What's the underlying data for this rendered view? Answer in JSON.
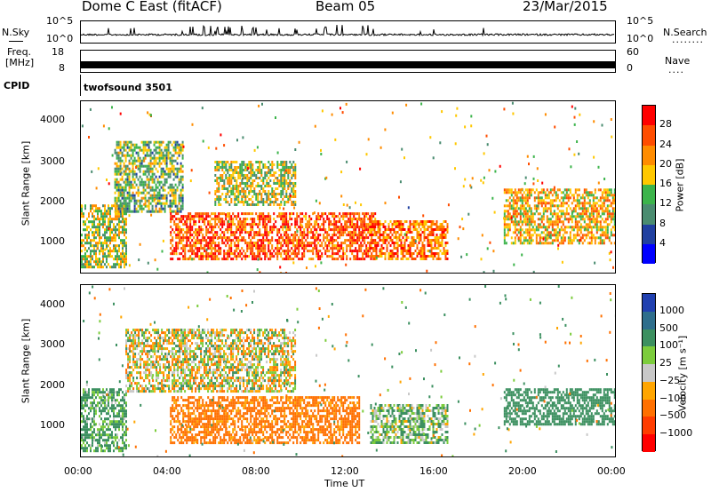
{
  "header": {
    "station": "Dome C East (fitACF)",
    "beam": "Beam 05",
    "date": "23/Mar/2015"
  },
  "sky_panel": {
    "left_label": "N.Sky",
    "left_ticks": [
      "10^5",
      "10^0"
    ],
    "right_ticks": [
      "10^5",
      "10^0"
    ],
    "right_label": "N.Search",
    "right_label_dots": "........"
  },
  "freq_panel": {
    "left_label_1": "Freq.",
    "left_label_2": "[MHz]",
    "left_ticks": [
      "18",
      "8"
    ],
    "right_ticks": [
      "60",
      "0"
    ],
    "right_label": "Nave",
    "right_label_dots": "...."
  },
  "cpid_panel": {
    "label": "CPID",
    "program": "twofsound 3501"
  },
  "power_panel": {
    "ylabel": "Slant Range [km]",
    "yticks": [
      "4000",
      "3000",
      "2000",
      "1000"
    ],
    "colorbar_label": "Power [dB]",
    "colorbar_ticks": [
      "28",
      "24",
      "20",
      "16",
      "12",
      "8",
      "4"
    ],
    "colors": [
      "#ff0000",
      "#ff4d00",
      "#ff8c00",
      "#ffc800",
      "#3cb44b",
      "#4a8c70",
      "#2040a0",
      "#0000ff"
    ]
  },
  "velocity_panel": {
    "ylabel": "Slant Range [km]",
    "yticks": [
      "4000",
      "3000",
      "2000",
      "1000"
    ],
    "colorbar_label": "Velocity [m s⁻¹]",
    "colorbar_ticks": [
      "1000",
      "500",
      "100",
      "25",
      "−25",
      "−100",
      "−500",
      "−1000"
    ],
    "colors": [
      "#2040b0",
      "#2e6e8c",
      "#3c9060",
      "#7ccc3c",
      "#c8c8c8",
      "#ffa500",
      "#ff7000",
      "#ff3c00",
      "#ff0000"
    ]
  },
  "xaxis": {
    "ticks": [
      "00:00",
      "04:00",
      "08:00",
      "12:00",
      "16:00",
      "20:00",
      "00:00"
    ],
    "label": "Time UT"
  },
  "chart_data": [
    {
      "type": "heatmap",
      "title": "Power",
      "ylabel": "Slant Range [km]",
      "xlabel": "Time UT",
      "ylim": [
        180,
        4500
      ],
      "xlim": [
        "00:00",
        "24:00"
      ],
      "colorbar": {
        "label": "Power [dB]",
        "ticks": [
          4,
          8,
          12,
          16,
          20,
          24,
          28
        ]
      },
      "regions": [
        {
          "t_start": 0.0,
          "t_end": 2.0,
          "r_min": 300,
          "r_max": 1900,
          "dB": 16
        },
        {
          "t_start": 1.5,
          "t_end": 4.6,
          "r_min": 1700,
          "r_max": 3500,
          "dB": 14
        },
        {
          "t_start": 4.0,
          "t_end": 13.2,
          "r_min": 500,
          "r_max": 1700,
          "dB": 26
        },
        {
          "t_start": 6.0,
          "t_end": 9.6,
          "r_min": 1900,
          "r_max": 3000,
          "dB": 16
        },
        {
          "t_start": 13.0,
          "t_end": 16.5,
          "r_min": 500,
          "r_max": 1500,
          "dB": 24
        },
        {
          "t_start": 19.0,
          "t_end": 24.0,
          "r_min": 900,
          "r_max": 2300,
          "dB": 20
        }
      ]
    },
    {
      "type": "heatmap",
      "title": "Velocity",
      "ylabel": "Slant Range [km]",
      "xlabel": "Time UT",
      "ylim": [
        180,
        4500
      ],
      "xlim": [
        "00:00",
        "24:00"
      ],
      "colorbar": {
        "label": "Velocity [m s⁻¹]",
        "ticks": [
          -1000,
          -500,
          -100,
          -25,
          25,
          100,
          500,
          1000
        ]
      },
      "regions": [
        {
          "t_start": 0.0,
          "t_end": 2.0,
          "r_min": 300,
          "r_max": 1900,
          "v": 150
        },
        {
          "t_start": 2.0,
          "t_end": 9.6,
          "r_min": 1800,
          "r_max": 3400,
          "v": 0
        },
        {
          "t_start": 4.0,
          "t_end": 12.5,
          "r_min": 500,
          "r_max": 1700,
          "v": -200
        },
        {
          "t_start": 13.0,
          "t_end": 16.5,
          "r_min": 500,
          "r_max": 1500,
          "v": 100
        },
        {
          "t_start": 19.0,
          "t_end": 24.0,
          "r_min": 1000,
          "r_max": 1900,
          "v": 300
        }
      ]
    }
  ]
}
